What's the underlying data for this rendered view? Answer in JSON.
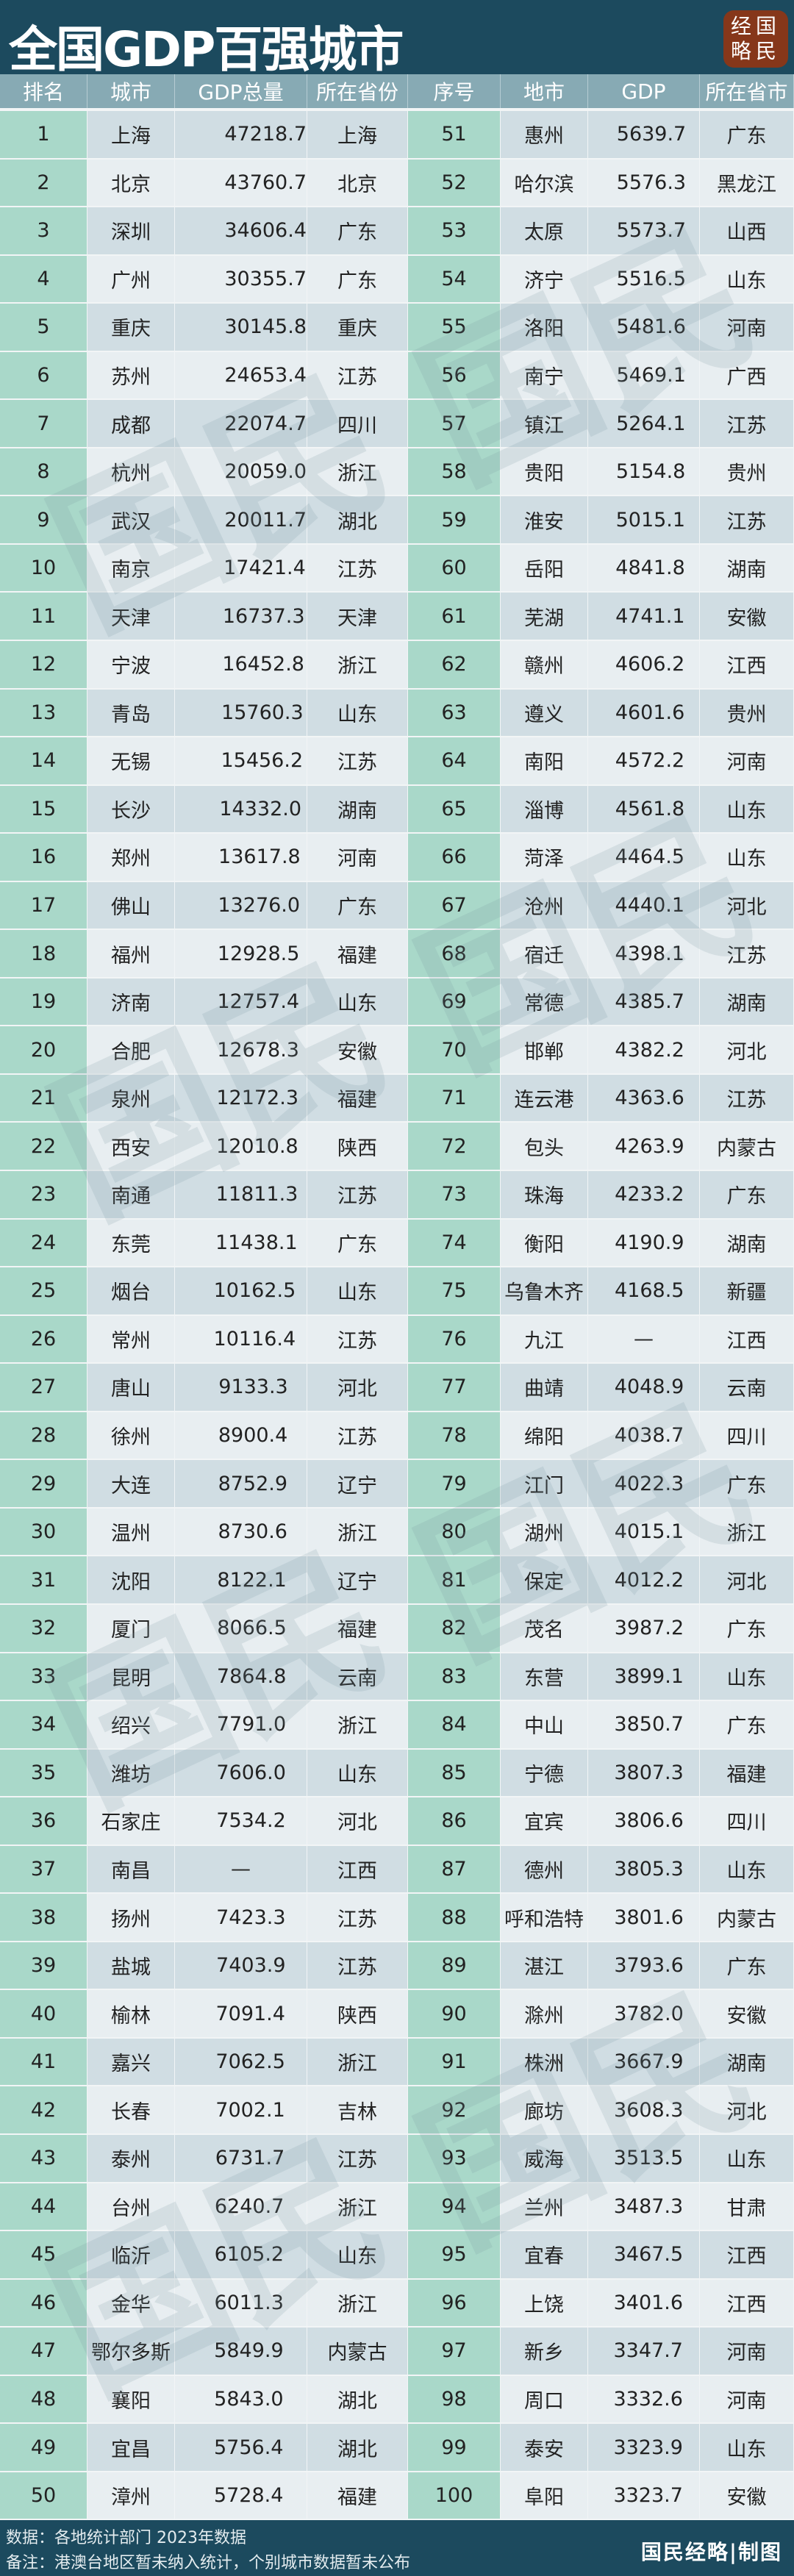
{
  "title": "全国GDP百强城市",
  "logo": "经国略民",
  "colors": {
    "header_bg": "#1c4a5e",
    "column_header_bg": "#87aab4",
    "rank_bg": "#a9d8c9",
    "bar": "#7fc0dc",
    "logo_bg": "#86371a"
  },
  "headers": [
    "排名",
    "城市",
    "GDP总量",
    "所在省份",
    "序号",
    "地市",
    "GDP",
    "所在省市"
  ],
  "left_rows": [
    [
      "1",
      "上海",
      "47218.7",
      "上海"
    ],
    [
      "2",
      "北京",
      "43760.7",
      "北京"
    ],
    [
      "3",
      "深圳",
      "34606.4",
      "广东"
    ],
    [
      "4",
      "广州",
      "30355.7",
      "广东"
    ],
    [
      "5",
      "重庆",
      "30145.8",
      "重庆"
    ],
    [
      "6",
      "苏州",
      "24653.4",
      "江苏"
    ],
    [
      "7",
      "成都",
      "22074.7",
      "四川"
    ],
    [
      "8",
      "杭州",
      "20059.0",
      "浙江"
    ],
    [
      "9",
      "武汉",
      "20011.7",
      "湖北"
    ],
    [
      "10",
      "南京",
      "17421.4",
      "江苏"
    ],
    [
      "11",
      "天津",
      "16737.3",
      "天津"
    ],
    [
      "12",
      "宁波",
      "16452.8",
      "浙江"
    ],
    [
      "13",
      "青岛",
      "15760.3",
      "山东"
    ],
    [
      "14",
      "无锡",
      "15456.2",
      "江苏"
    ],
    [
      "15",
      "长沙",
      "14332.0",
      "湖南"
    ],
    [
      "16",
      "郑州",
      "13617.8",
      "河南"
    ],
    [
      "17",
      "佛山",
      "13276.0",
      "广东"
    ],
    [
      "18",
      "福州",
      "12928.5",
      "福建"
    ],
    [
      "19",
      "济南",
      "12757.4",
      "山东"
    ],
    [
      "20",
      "合肥",
      "12678.3",
      "安徽"
    ],
    [
      "21",
      "泉州",
      "12172.3",
      "福建"
    ],
    [
      "22",
      "西安",
      "12010.8",
      "陕西"
    ],
    [
      "23",
      "南通",
      "11811.3",
      "江苏"
    ],
    [
      "24",
      "东莞",
      "11438.1",
      "广东"
    ],
    [
      "25",
      "烟台",
      "10162.5",
      "山东"
    ],
    [
      "26",
      "常州",
      "10116.4",
      "江苏"
    ],
    [
      "27",
      "唐山",
      "9133.3",
      "河北"
    ],
    [
      "28",
      "徐州",
      "8900.4",
      "江苏"
    ],
    [
      "29",
      "大连",
      "8752.9",
      "辽宁"
    ],
    [
      "30",
      "温州",
      "8730.6",
      "浙江"
    ],
    [
      "31",
      "沈阳",
      "8122.1",
      "辽宁"
    ],
    [
      "32",
      "厦门",
      "8066.5",
      "福建"
    ],
    [
      "33",
      "昆明",
      "7864.8",
      "云南"
    ],
    [
      "34",
      "绍兴",
      "7791.0",
      "浙江"
    ],
    [
      "35",
      "潍坊",
      "7606.0",
      "山东"
    ],
    [
      "36",
      "石家庄",
      "7534.2",
      "河北"
    ],
    [
      "37",
      "南昌",
      "—",
      "江西"
    ],
    [
      "38",
      "扬州",
      "7423.3",
      "江苏"
    ],
    [
      "39",
      "盐城",
      "7403.9",
      "江苏"
    ],
    [
      "40",
      "榆林",
      "7091.4",
      "陕西"
    ],
    [
      "41",
      "嘉兴",
      "7062.5",
      "浙江"
    ],
    [
      "42",
      "长春",
      "7002.1",
      "吉林"
    ],
    [
      "43",
      "泰州",
      "6731.7",
      "江苏"
    ],
    [
      "44",
      "台州",
      "6240.7",
      "浙江"
    ],
    [
      "45",
      "临沂",
      "6105.2",
      "山东"
    ],
    [
      "46",
      "金华",
      "6011.3",
      "浙江"
    ],
    [
      "47",
      "鄂尔多斯",
      "5849.9",
      "内蒙古"
    ],
    [
      "48",
      "襄阳",
      "5843.0",
      "湖北"
    ],
    [
      "49",
      "宜昌",
      "5756.4",
      "湖北"
    ],
    [
      "50",
      "漳州",
      "5728.4",
      "福建"
    ]
  ],
  "right_rows": [
    [
      "51",
      "惠州",
      "5639.7",
      "广东"
    ],
    [
      "52",
      "哈尔滨",
      "5576.3",
      "黑龙江"
    ],
    [
      "53",
      "太原",
      "5573.7",
      "山西"
    ],
    [
      "54",
      "济宁",
      "5516.5",
      "山东"
    ],
    [
      "55",
      "洛阳",
      "5481.6",
      "河南"
    ],
    [
      "56",
      "南宁",
      "5469.1",
      "广西"
    ],
    [
      "57",
      "镇江",
      "5264.1",
      "江苏"
    ],
    [
      "58",
      "贵阳",
      "5154.8",
      "贵州"
    ],
    [
      "59",
      "淮安",
      "5015.1",
      "江苏"
    ],
    [
      "60",
      "岳阳",
      "4841.8",
      "湖南"
    ],
    [
      "61",
      "芜湖",
      "4741.1",
      "安徽"
    ],
    [
      "62",
      "赣州",
      "4606.2",
      "江西"
    ],
    [
      "63",
      "遵义",
      "4601.6",
      "贵州"
    ],
    [
      "64",
      "南阳",
      "4572.2",
      "河南"
    ],
    [
      "65",
      "淄博",
      "4561.8",
      "山东"
    ],
    [
      "66",
      "菏泽",
      "4464.5",
      "山东"
    ],
    [
      "67",
      "沧州",
      "4440.1",
      "河北"
    ],
    [
      "68",
      "宿迁",
      "4398.1",
      "江苏"
    ],
    [
      "69",
      "常德",
      "4385.7",
      "湖南"
    ],
    [
      "70",
      "邯郸",
      "4382.2",
      "河北"
    ],
    [
      "71",
      "连云港",
      "4363.6",
      "江苏"
    ],
    [
      "72",
      "包头",
      "4263.9",
      "内蒙古"
    ],
    [
      "73",
      "珠海",
      "4233.2",
      "广东"
    ],
    [
      "74",
      "衡阳",
      "4190.9",
      "湖南"
    ],
    [
      "75",
      "乌鲁木齐",
      "4168.5",
      "新疆"
    ],
    [
      "76",
      "九江",
      "—",
      "江西"
    ],
    [
      "77",
      "曲靖",
      "4048.9",
      "云南"
    ],
    [
      "78",
      "绵阳",
      "4038.7",
      "四川"
    ],
    [
      "79",
      "江门",
      "4022.3",
      "广东"
    ],
    [
      "80",
      "湖州",
      "4015.1",
      "浙江"
    ],
    [
      "81",
      "保定",
      "4012.2",
      "河北"
    ],
    [
      "82",
      "茂名",
      "3987.2",
      "广东"
    ],
    [
      "83",
      "东营",
      "3899.1",
      "山东"
    ],
    [
      "84",
      "中山",
      "3850.7",
      "广东"
    ],
    [
      "85",
      "宁德",
      "3807.3",
      "福建"
    ],
    [
      "86",
      "宜宾",
      "3806.6",
      "四川"
    ],
    [
      "87",
      "德州",
      "3805.3",
      "山东"
    ],
    [
      "88",
      "呼和浩特",
      "3801.6",
      "内蒙古"
    ],
    [
      "89",
      "湛江",
      "3793.6",
      "广东"
    ],
    [
      "90",
      "滁州",
      "3782.0",
      "安徽"
    ],
    [
      "91",
      "株洲",
      "3667.9",
      "湖南"
    ],
    [
      "92",
      "廊坊",
      "3608.3",
      "河北"
    ],
    [
      "93",
      "威海",
      "3513.5",
      "山东"
    ],
    [
      "94",
      "兰州",
      "3487.3",
      "甘肃"
    ],
    [
      "95",
      "宜春",
      "3467.5",
      "江西"
    ],
    [
      "96",
      "上饶",
      "3401.6",
      "江西"
    ],
    [
      "97",
      "新乡",
      "3347.7",
      "河南"
    ],
    [
      "98",
      "周口",
      "3332.6",
      "河南"
    ],
    [
      "99",
      "泰安",
      "3323.9",
      "山东"
    ],
    [
      "100",
      "阜阳",
      "3323.7",
      "安徽"
    ]
  ],
  "footer": {
    "source": "数据：各地统计部门 2023年数据",
    "note": "备注：港澳台地区暂未纳入统计，个别城市数据暂未公布",
    "credit": "国民经略|制图"
  },
  "watermark": "国民经略"
}
